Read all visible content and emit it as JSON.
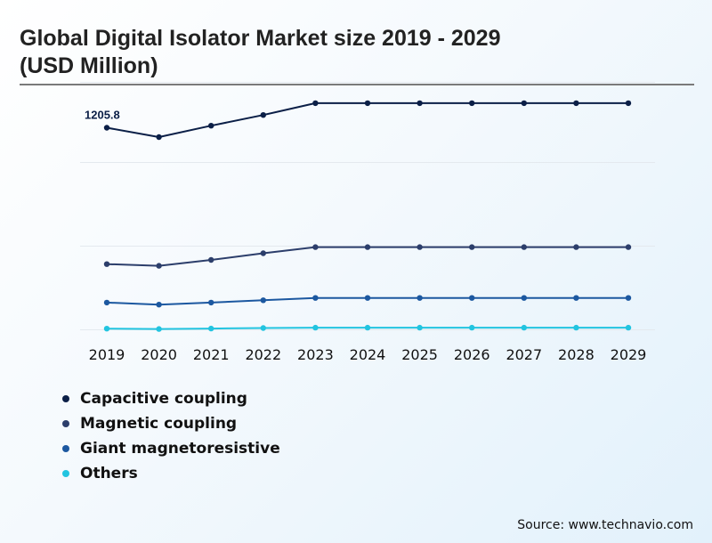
{
  "title": "Global Digital Isolator Market size 2019 - 2029 (USD Million)",
  "source": "Source: www.technavio.com",
  "chart_data": {
    "type": "line",
    "title": "Global Digital Isolator Market size 2019 - 2029 (USD Million)",
    "xlabel": "",
    "ylabel": "",
    "categories": [
      "2019",
      "2020",
      "2021",
      "2022",
      "2023",
      "2024",
      "2025",
      "2026",
      "2027",
      "2028",
      "2029"
    ],
    "ylim": [
      0,
      1480
    ],
    "grid": true,
    "legend_position": "bottom-left",
    "series": [
      {
        "name": "Capacitive coupling",
        "color": "#0b1f47",
        "values": [
          1205.8,
          1150,
          1218,
          1282,
          1353,
          1353,
          1353,
          1353,
          1353,
          1353,
          1353
        ]
      },
      {
        "name": "Magnetic coupling",
        "color": "#2c3e6b",
        "values": [
          390,
          380,
          415,
          455,
          492,
          492,
          492,
          492,
          492,
          492,
          492
        ]
      },
      {
        "name": "Giant magnetoresistive",
        "color": "#1c58a0",
        "values": [
          160,
          148,
          160,
          174,
          188,
          188,
          188,
          188,
          188,
          188,
          188
        ]
      },
      {
        "name": "Others",
        "color": "#22c4e0",
        "values": [
          4,
          2,
          5,
          8,
          10,
          10,
          10,
          10,
          10,
          10,
          10
        ]
      }
    ],
    "annotations": [
      {
        "series": 0,
        "index": 0,
        "text": "1205.8"
      }
    ]
  }
}
